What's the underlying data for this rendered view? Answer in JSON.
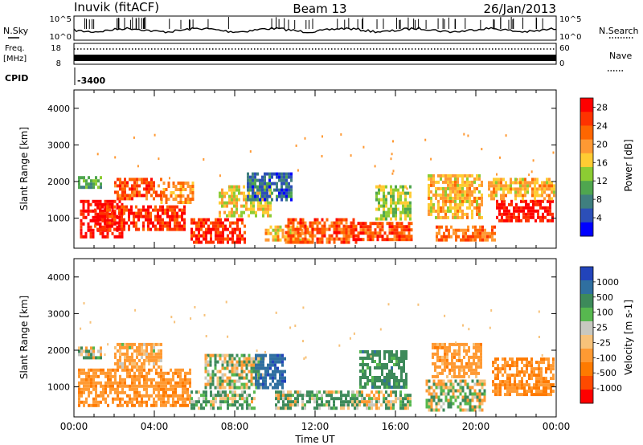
{
  "header": {
    "station": "Inuvik (fitACF)",
    "beam": "Beam 13",
    "date": "26/Jan/2013"
  },
  "status_panels": {
    "nsky_label": "N.Sky",
    "nsky_ticks": [
      "10^5",
      "10^0"
    ],
    "nsearch_label": "N.Search",
    "nsearch_ticks": [
      "10^5",
      "10^0"
    ],
    "freq_label": "Freq.",
    "freq_unit": "[MHz]",
    "freq_ticks": [
      18,
      8
    ],
    "nave_label": "Nave",
    "nave_ticks": [
      60,
      0
    ],
    "cpid_label": "CPID",
    "cpid_value": "-3400"
  },
  "colors": {
    "power_scale": [
      "#0000ff",
      "#2c4fb8",
      "#3f7f7f",
      "#4fa64f",
      "#8ccc33",
      "#ffcc33",
      "#ff9933",
      "#ff6600",
      "#ff3300",
      "#ff0000"
    ],
    "velocity_scale": [
      "#2244bb",
      "#2f6fa0",
      "#3d8a5a",
      "#57b84f",
      "#c8c8c0",
      "#f7c27a",
      "#ff9a33",
      "#ff7a00",
      "#ff4a00",
      "#ff0000"
    ]
  },
  "chart_data": [
    {
      "type": "heatmap",
      "title": "Power",
      "xlabel": "",
      "ylabel": "Slant Range [km]",
      "xlim": [
        "00:00",
        "24:00"
      ],
      "ylim": [
        180,
        4500
      ],
      "x_ticks": [
        "00:00",
        "04:00",
        "08:00",
        "12:00",
        "16:00",
        "20:00",
        "00:00"
      ],
      "y_ticks": [
        1000,
        2000,
        3000,
        4000
      ],
      "colorbar": {
        "label": "Power [dB]",
        "ticks": [
          4,
          8,
          12,
          16,
          20,
          24,
          28
        ],
        "range": [
          0,
          30
        ]
      },
      "regions": [
        {
          "t0": 0.3,
          "t1": 2.4,
          "r0": 500,
          "r1": 1500,
          "value": 28
        },
        {
          "t0": 1.0,
          "t1": 5.5,
          "r0": 700,
          "r1": 1350,
          "value": 26
        },
        {
          "t0": 2.0,
          "t1": 4.3,
          "r0": 1500,
          "r1": 2100,
          "value": 24
        },
        {
          "t0": 4.3,
          "t1": 5.9,
          "r0": 1400,
          "r1": 2000,
          "value": 20
        },
        {
          "t0": 0.2,
          "t1": 1.3,
          "r0": 1800,
          "r1": 2150,
          "value": 10
        },
        {
          "t0": 5.8,
          "t1": 8.5,
          "r0": 380,
          "r1": 1000,
          "value": 26
        },
        {
          "t0": 7.2,
          "t1": 9.8,
          "r0": 1100,
          "r1": 1900,
          "value": 16
        },
        {
          "t0": 8.6,
          "t1": 10.8,
          "r0": 1500,
          "r1": 2250,
          "value": 6
        },
        {
          "t0": 9.5,
          "t1": 11.8,
          "r0": 400,
          "r1": 800,
          "value": 18
        },
        {
          "t0": 10.5,
          "t1": 14.0,
          "r0": 380,
          "r1": 1000,
          "value": 24
        },
        {
          "t0": 13.5,
          "t1": 16.8,
          "r0": 380,
          "r1": 900,
          "value": 24
        },
        {
          "t0": 15.0,
          "t1": 16.8,
          "r0": 1000,
          "r1": 1900,
          "value": 14
        },
        {
          "t0": 18.0,
          "t1": 21.0,
          "r0": 380,
          "r1": 800,
          "value": 22
        },
        {
          "t0": 17.6,
          "t1": 20.3,
          "r0": 1000,
          "r1": 2200,
          "value": 18
        },
        {
          "t0": 21.0,
          "t1": 23.8,
          "r0": 900,
          "r1": 1500,
          "value": 28
        },
        {
          "t0": 20.6,
          "t1": 23.9,
          "r0": 1500,
          "r1": 2100,
          "value": 18
        }
      ]
    },
    {
      "type": "heatmap",
      "title": "Velocity",
      "xlabel": "Time UT",
      "ylabel": "Slant Range [km]",
      "xlim": [
        "00:00",
        "24:00"
      ],
      "ylim": [
        180,
        4500
      ],
      "x_ticks": [
        "00:00",
        "04:00",
        "08:00",
        "12:00",
        "16:00",
        "20:00",
        "00:00"
      ],
      "y_ticks": [
        1000,
        2000,
        3000,
        4000
      ],
      "colorbar": {
        "label": "Velocity [m s-1]",
        "ticks": [
          1000,
          500,
          100,
          25,
          -25,
          -100,
          -500,
          -1000
        ]
      },
      "regions": [
        {
          "t0": 0.2,
          "t1": 5.8,
          "r0": 500,
          "r1": 1500,
          "value": -400
        },
        {
          "t0": 2.0,
          "t1": 4.3,
          "r0": 1500,
          "r1": 2200,
          "value": -200
        },
        {
          "t0": 0.2,
          "t1": 1.3,
          "r0": 1800,
          "r1": 2100,
          "value": 0
        },
        {
          "t0": 5.8,
          "t1": 9.0,
          "r0": 380,
          "r1": 900,
          "value": 120
        },
        {
          "t0": 6.5,
          "t1": 9.5,
          "r0": 1000,
          "r1": 1900,
          "value": 0
        },
        {
          "t0": 9.0,
          "t1": 10.5,
          "r0": 1000,
          "r1": 1900,
          "value": 800
        },
        {
          "t0": 10.0,
          "t1": 14.0,
          "r0": 380,
          "r1": 900,
          "value": 120
        },
        {
          "t0": 13.8,
          "t1": 16.8,
          "r0": 380,
          "r1": 900,
          "value": 50
        },
        {
          "t0": 14.2,
          "t1": 16.5,
          "r0": 1000,
          "r1": 2000,
          "value": 300
        },
        {
          "t0": 17.5,
          "t1": 20.5,
          "r0": 380,
          "r1": 1200,
          "value": 0
        },
        {
          "t0": 17.8,
          "t1": 20.3,
          "r0": 1300,
          "r1": 2200,
          "value": -300
        },
        {
          "t0": 20.8,
          "t1": 23.9,
          "r0": 800,
          "r1": 1800,
          "value": -500
        }
      ]
    }
  ]
}
